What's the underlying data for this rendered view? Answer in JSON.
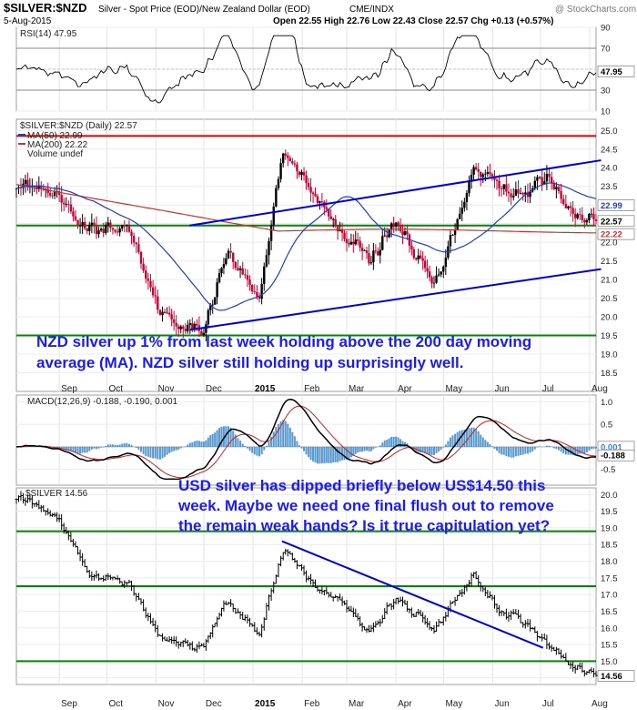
{
  "header": {
    "symbol": "$SILVER:$NZD",
    "description": "Silver - Spot Price (EOD)/New Zealand Dollar (EOD)",
    "exchange": "CME/INDX",
    "watermark": "@ StockCharts.com",
    "date": "5-Aug-2015",
    "quote": "Open 22.55  High 22.76  Low 22.43  Close 22.57  Chg +0.13 (+0.57%)"
  },
  "annotations": {
    "nzd_line1": "NZD silver up 1% from last week holding above the 200 day moving",
    "nzd_line2": "average (MA). NZD silver still holding up surprisingly well.",
    "usd_line1": "USD silver has dipped briefly below US$14.50 this",
    "usd_line2": "week. Maybe we need one final flush out to remove",
    "usd_line3": "the remain weak hands? Is it true capitulation yet?"
  },
  "x_axis": {
    "labels": [
      "Sep",
      "Oct",
      "Nov",
      "Dec",
      "2015",
      "Feb",
      "Mar",
      "Apr",
      "May",
      "Jun",
      "Jul",
      "Aug"
    ],
    "bold": [
      false,
      false,
      false,
      false,
      true,
      false,
      false,
      false,
      false,
      false,
      false,
      false
    ]
  },
  "colors": {
    "up": "#000000",
    "down": "#cc0033",
    "ma50": "#1f3fbf",
    "ma200": "#cc3333",
    "support": "#008800",
    "resistance": "#dd0000",
    "trend": "#0000dd",
    "macd_hist": "#3a86c8"
  },
  "chart_data": [
    {
      "type": "line",
      "title": "RSI(14) 47.95",
      "series": [
        {
          "name": "RSI(14)",
          "last": 47.95
        }
      ],
      "ylim": [
        10,
        90
      ],
      "yticks": [
        90,
        70,
        50,
        30,
        10
      ],
      "reference_lines": [
        70,
        30
      ],
      "tags": [
        "47.95"
      ]
    },
    {
      "type": "line",
      "title": "$SILVER:$NZD (Daily) 22.57",
      "series": [
        {
          "name": "$SILVER:$NZD (Daily)",
          "last": 22.57
        },
        {
          "name": "MA(50)",
          "last": 22.99
        },
        {
          "name": "MA(200)",
          "last": 22.22
        },
        {
          "name": "Volume undef",
          "last": null
        }
      ],
      "legend": [
        "MA(50) 22.99",
        "MA(200) 22.22",
        "Volume undef"
      ],
      "ylim": [
        18.0,
        25.3
      ],
      "yticks": [
        25.0,
        24.5,
        24.0,
        23.5,
        23.0,
        22.5,
        22.0,
        21.5,
        21.0,
        20.5,
        20.0,
        19.5,
        19.0,
        18.5
      ],
      "horizontal_lines": {
        "resistance": 24.85,
        "support_mid": 22.45,
        "support_low": 19.5
      },
      "channel": {
        "upper": [
          [
            2014.89,
            22.45
          ],
          [
            2015.6,
            24.2
          ]
        ],
        "lower": [
          [
            2014.89,
            19.65
          ],
          [
            2015.6,
            21.28
          ]
        ]
      },
      "tags": [
        "22.99",
        "22.57",
        "22.22"
      ],
      "key_points": [
        [
          "2014-08-05",
          23.7
        ],
        [
          "2014-09-01",
          23.1
        ],
        [
          "2014-09-20",
          22.3
        ],
        [
          "2014-10-15",
          22.4
        ],
        [
          "2014-11-05",
          20.0
        ],
        [
          "2014-12-01",
          19.6
        ],
        [
          "2014-12-15",
          21.8
        ],
        [
          "2015-01-05",
          20.5
        ],
        [
          "2015-01-20",
          24.6
        ],
        [
          "2015-02-05",
          23.4
        ],
        [
          "2015-03-01",
          22.2
        ],
        [
          "2015-03-15",
          21.5
        ],
        [
          "2015-04-01",
          22.6
        ],
        [
          "2015-04-25",
          20.8
        ],
        [
          "2015-05-20",
          24.0
        ],
        [
          "2015-06-05",
          23.6
        ],
        [
          "2015-06-20",
          23.2
        ],
        [
          "2015-07-05",
          23.8
        ],
        [
          "2015-07-20",
          22.7
        ],
        [
          "2015-08-05",
          22.57
        ]
      ]
    },
    {
      "type": "line",
      "title": "MACD(12,26,9) -0.188, -0.190, 0.001",
      "series": [
        {
          "name": "MACD(12,26,9)",
          "last": -0.188
        },
        {
          "name": "Signal",
          "last": -0.19
        },
        {
          "name": "Histogram",
          "last": 0.001
        }
      ],
      "ylim": [
        -0.85,
        1.15
      ],
      "yticks": [
        1.0,
        0.5,
        0.0,
        -0.5
      ],
      "tags": [
        "0.001",
        "-0.188"
      ]
    },
    {
      "type": "line",
      "title": "$SILVER 14.56",
      "series": [
        {
          "name": "$SILVER",
          "last": 14.56
        }
      ],
      "ylim": [
        14.3,
        20.2
      ],
      "yticks": [
        20.0,
        19.5,
        19.0,
        18.5,
        18.0,
        17.5,
        17.0,
        16.5,
        16.0,
        15.5,
        15.0,
        14.5
      ],
      "horizontal_lines": [
        18.9,
        17.25,
        15.0
      ],
      "downtrend": [
        [
          2015.05,
          18.6
        ],
        [
          2015.5,
          15.4
        ]
      ],
      "tags": [
        "14.56"
      ],
      "key_points": [
        [
          "2014-08-05",
          20.0
        ],
        [
          "2014-09-01",
          19.3
        ],
        [
          "2014-09-20",
          17.6
        ],
        [
          "2014-10-15",
          17.3
        ],
        [
          "2014-11-05",
          15.6
        ],
        [
          "2014-12-01",
          15.4
        ],
        [
          "2014-12-15",
          16.8
        ],
        [
          "2015-01-05",
          15.8
        ],
        [
          "2015-01-20",
          18.4
        ],
        [
          "2015-02-05",
          17.4
        ],
        [
          "2015-03-01",
          16.7
        ],
        [
          "2015-03-15",
          15.8
        ],
        [
          "2015-04-01",
          16.9
        ],
        [
          "2015-04-25",
          15.9
        ],
        [
          "2015-05-20",
          17.6
        ],
        [
          "2015-06-05",
          16.5
        ],
        [
          "2015-06-20",
          16.2
        ],
        [
          "2015-07-05",
          15.6
        ],
        [
          "2015-07-20",
          14.9
        ],
        [
          "2015-08-05",
          14.56
        ]
      ]
    }
  ]
}
